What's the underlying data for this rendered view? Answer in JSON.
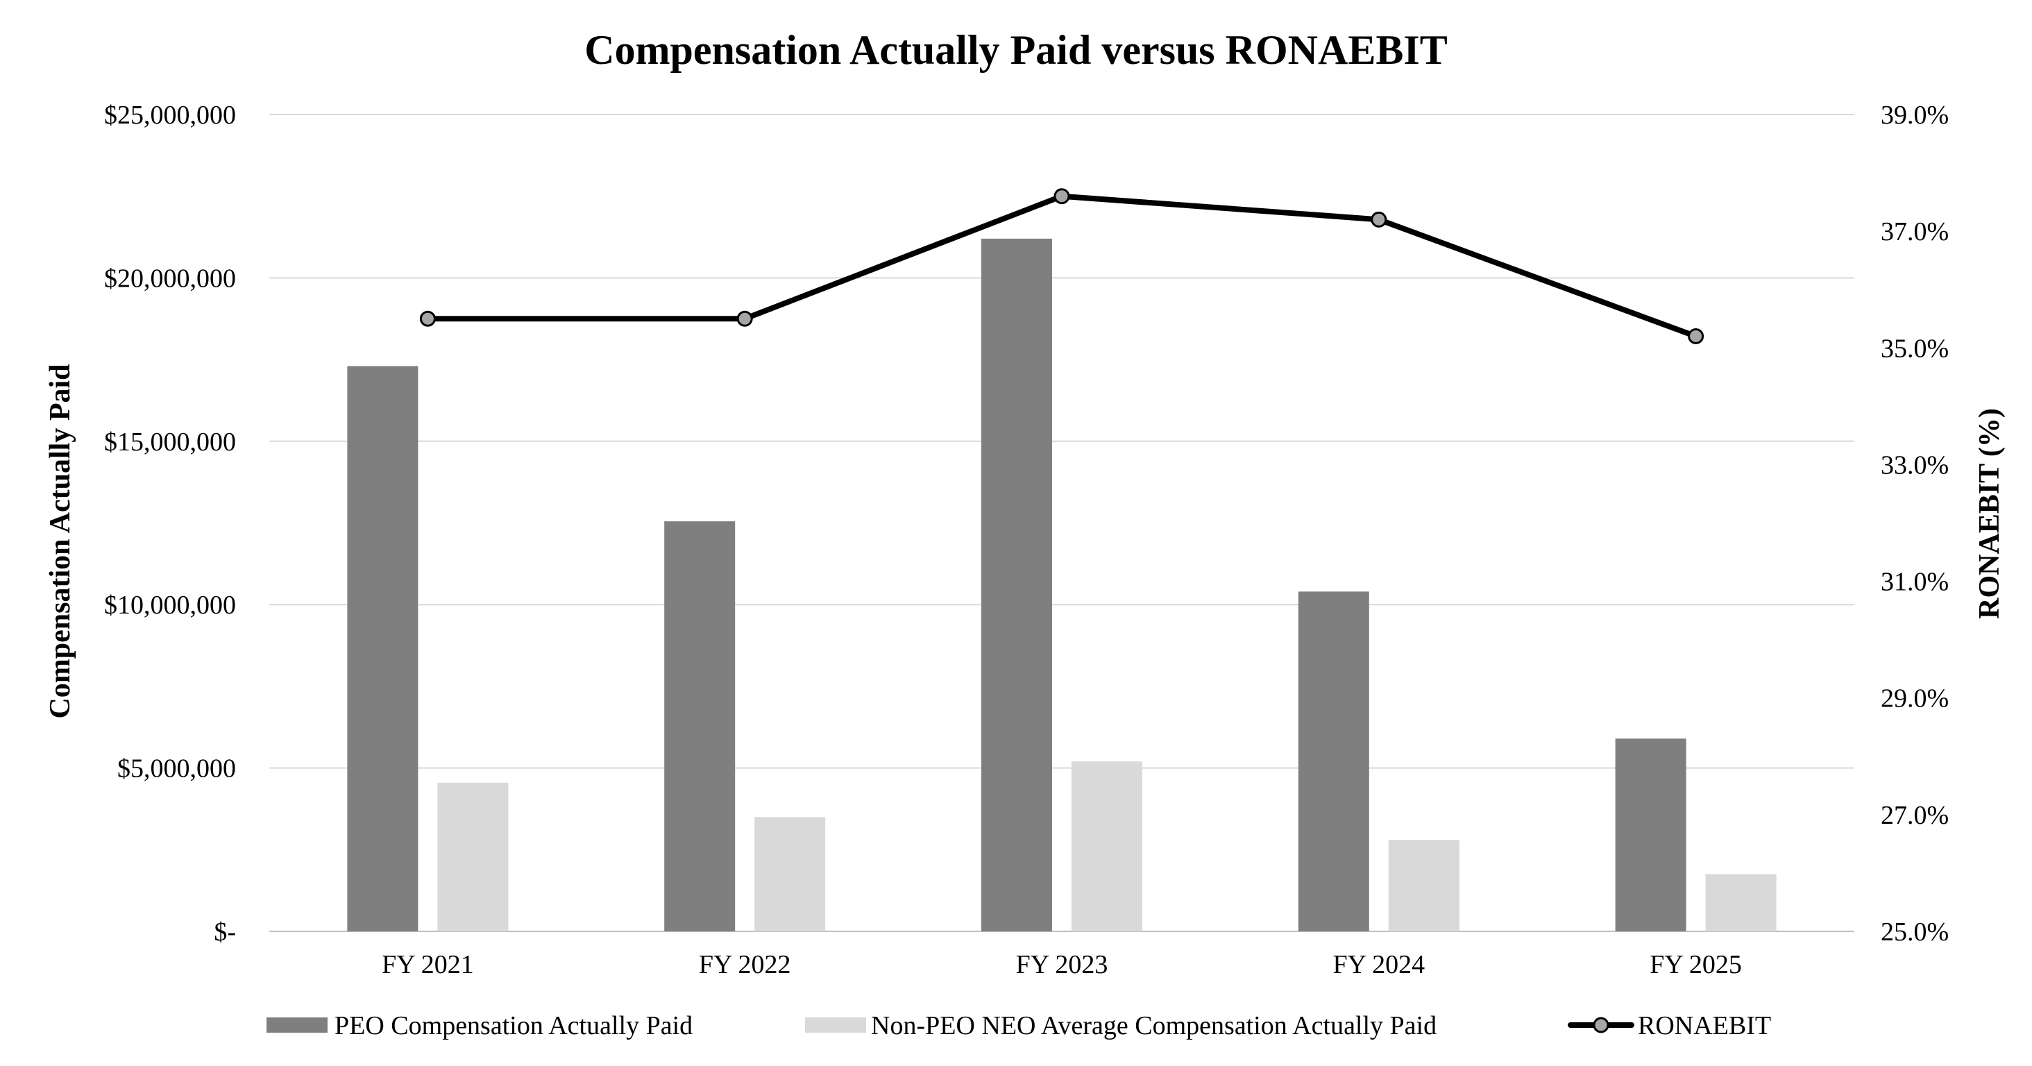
{
  "chart_data": {
    "type": "bar",
    "title": "Compensation Actually Paid versus RONAEBIT",
    "categories": [
      "FY 2021",
      "FY 2022",
      "FY 2023",
      "FY 2024",
      "FY 2025"
    ],
    "xlabel": "",
    "ylabel": "Compensation Actually Paid",
    "ylabel_right": "RONAEBIT (%)",
    "ylim": [
      0,
      25000000
    ],
    "ylim_right": [
      25.0,
      39.0
    ],
    "y_ticks": [
      0,
      5000000,
      10000000,
      15000000,
      20000000,
      25000000
    ],
    "y_tick_labels": [
      "$-",
      "$5,000,000",
      "$10,000,000",
      "$15,000,000",
      "$20,000,000",
      "$25,000,000"
    ],
    "y_right_ticks": [
      25,
      27,
      29,
      31,
      33,
      35,
      37,
      39
    ],
    "y_right_tick_labels": [
      "25.0%",
      "27.0%",
      "29.0%",
      "31.0%",
      "33.0%",
      "35.0%",
      "37.0%",
      "39.0%"
    ],
    "grid": true,
    "legend_position": "bottom",
    "series": [
      {
        "name": "PEO Compensation Actually Paid",
        "type": "bar",
        "axis": "left",
        "color": "#7f7f7f",
        "values": [
          17300000,
          12550000,
          21200000,
          10400000,
          5900000
        ]
      },
      {
        "name": "Non-PEO NEO Average Compensation Actually Paid",
        "type": "bar",
        "axis": "left",
        "color": "#d9d9d9",
        "values": [
          4550000,
          3500000,
          5200000,
          2800000,
          1750000
        ]
      },
      {
        "name": "RONAEBIT",
        "type": "line",
        "axis": "right",
        "color": "#000000",
        "marker_color": "#a6a6a6",
        "values": [
          35.5,
          35.5,
          37.6,
          37.2,
          35.2
        ]
      }
    ]
  }
}
